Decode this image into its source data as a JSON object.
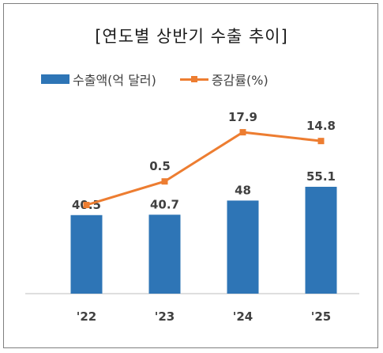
{
  "title": "[연도별 상반기 수출 추이]",
  "legend": {
    "bar_label": "수출액(억 달러)",
    "line_label": "증감률(%)"
  },
  "colors": {
    "bar": "#2e75b6",
    "line": "#ed7d31",
    "text": "#404040",
    "axis": "#bfbfbf"
  },
  "chart_data": {
    "type": "bar",
    "title": "[연도별 상반기 수출 추이]",
    "categories": [
      "'22",
      "'23",
      "'24",
      "'25"
    ],
    "series": [
      {
        "name": "수출액(억 달러)",
        "type": "bar",
        "values": [
          40.5,
          40.7,
          48,
          55.1
        ],
        "labels": [
          "40.5",
          "40.7",
          "48",
          "55.1"
        ]
      },
      {
        "name": "증감률(%)",
        "type": "line",
        "values": [
          null,
          0.5,
          17.9,
          14.8
        ],
        "labels": [
          null,
          "0.5",
          "17.9",
          "14.8"
        ],
        "first_point_visible": true
      }
    ],
    "grid": false,
    "legend_position": "top-left"
  }
}
